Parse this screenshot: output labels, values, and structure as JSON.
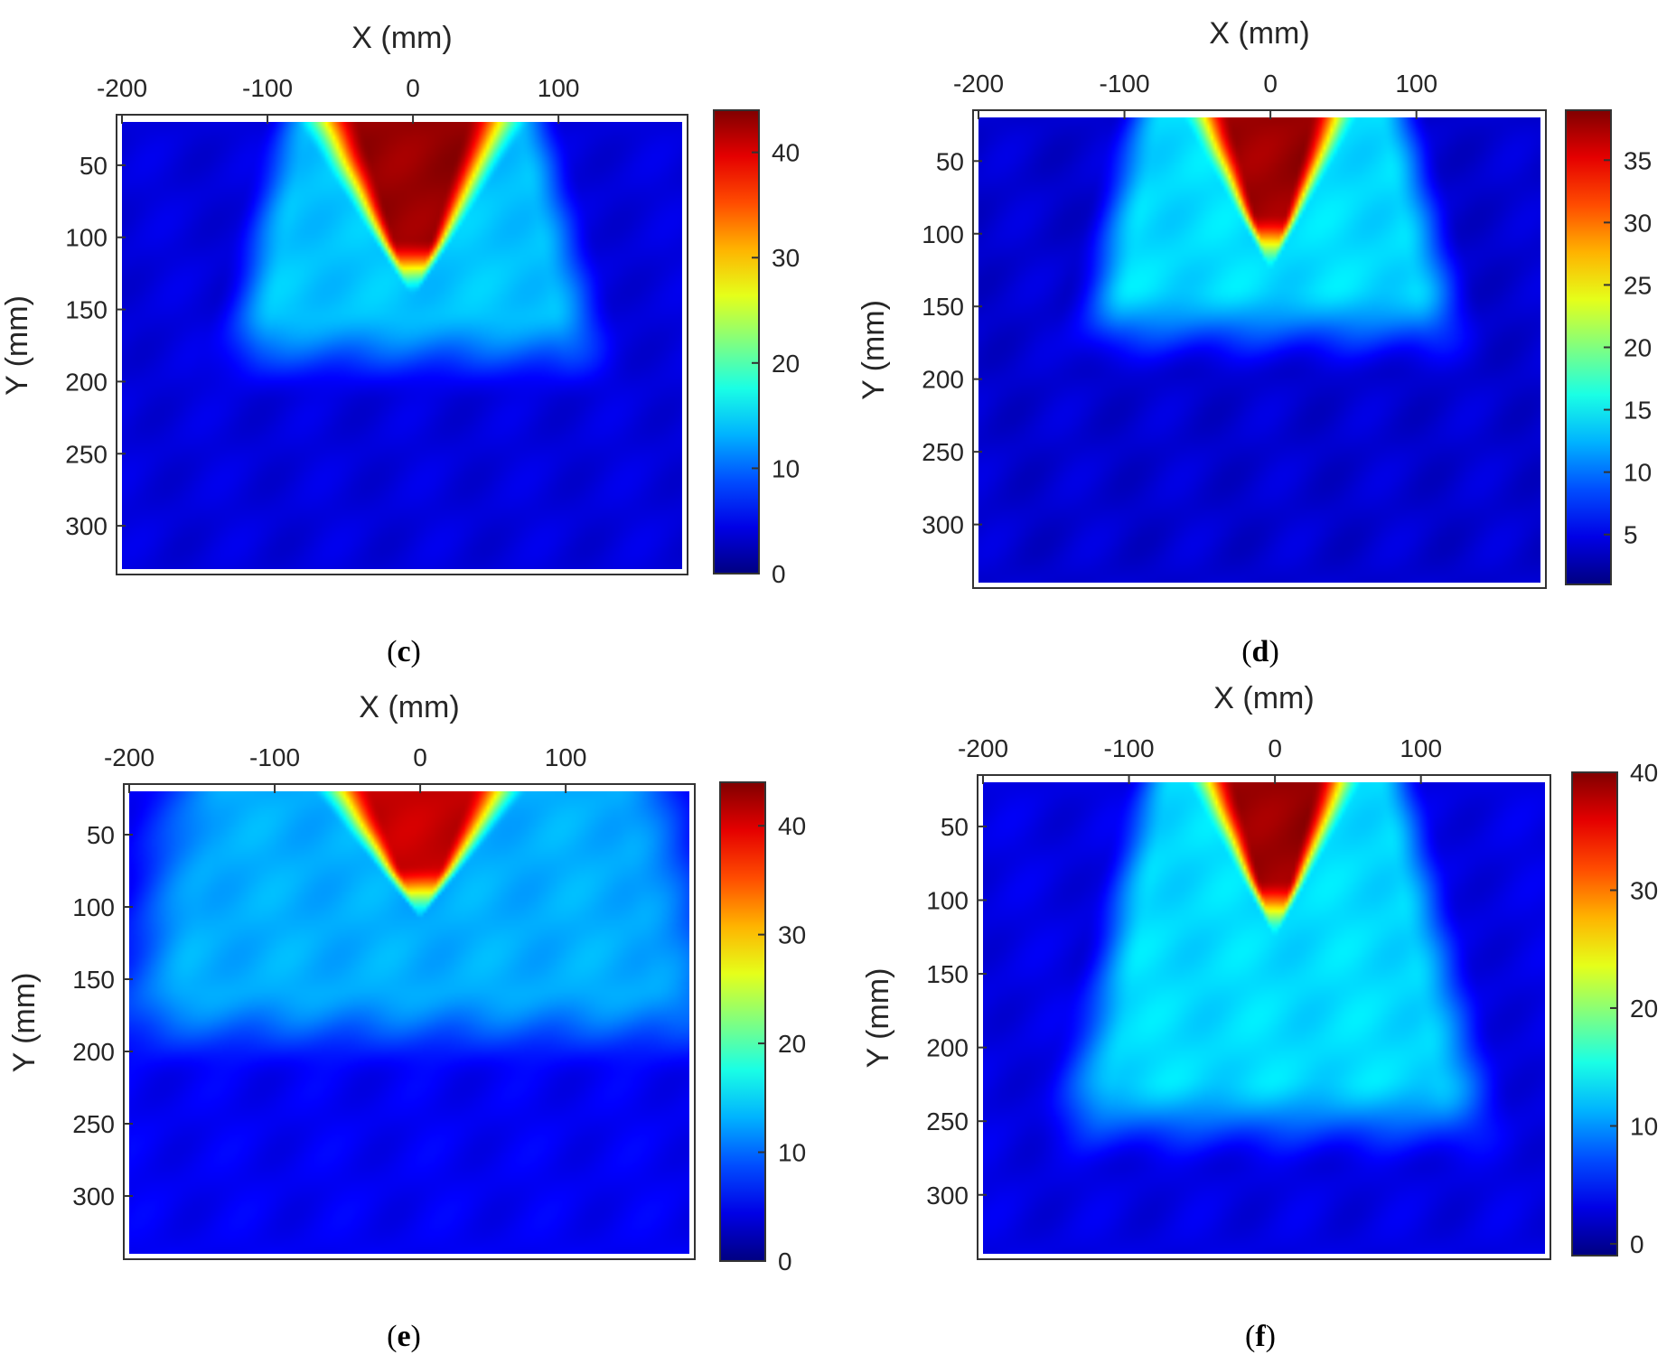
{
  "chart_data": [
    {
      "type": "heatmap",
      "panel": "c",
      "caption_open": "(",
      "caption_letter": "c",
      "caption_close": ")",
      "xlabel": "X (mm)",
      "ylabel": "Y (mm)",
      "x_ticks": [
        -200,
        -100,
        0,
        100
      ],
      "y_ticks": [
        50,
        100,
        150,
        200,
        250,
        300
      ],
      "xlim": [
        -200,
        185
      ],
      "ylim": [
        20,
        330
      ],
      "colorbar": {
        "min": 0,
        "max": 44,
        "ticks": [
          0,
          10,
          20,
          30,
          40
        ],
        "colormap": "jet"
      },
      "hot_core": {
        "x_center": 0,
        "half_width": 60,
        "top": 20,
        "tip": 125,
        "peak": 43
      },
      "plume": {
        "half_width": 95,
        "depth": 180,
        "level": 14
      },
      "background_level": 4,
      "axis_position": "top"
    },
    {
      "type": "heatmap",
      "panel": "d",
      "caption_open": "(",
      "caption_letter": "d",
      "caption_close": ")",
      "xlabel": "X (mm)",
      "ylabel": "Y (mm)",
      "x_ticks": [
        -200,
        -100,
        0,
        100
      ],
      "y_ticks": [
        50,
        100,
        150,
        200,
        250,
        300
      ],
      "xlim": [
        -200,
        185
      ],
      "ylim": [
        20,
        340
      ],
      "colorbar": {
        "min": 1,
        "max": 39,
        "ticks": [
          5,
          10,
          15,
          20,
          25,
          30,
          35
        ],
        "colormap": "jet"
      },
      "hot_core": {
        "x_center": 0,
        "half_width": 45,
        "top": 20,
        "tip": 110,
        "peak": 38
      },
      "plume": {
        "half_width": 100,
        "depth": 165,
        "level": 14
      },
      "background_level": 4,
      "axis_position": "top"
    },
    {
      "type": "heatmap",
      "panel": "e",
      "caption_open": "(",
      "caption_letter": "e",
      "caption_close": ")",
      "xlabel": "X (mm)",
      "ylabel": "Y (mm)",
      "x_ticks": [
        -200,
        -100,
        0,
        100
      ],
      "y_ticks": [
        50,
        100,
        150,
        200,
        250,
        300
      ],
      "xlim": [
        -200,
        185
      ],
      "ylim": [
        20,
        340
      ],
      "colorbar": {
        "min": 0,
        "max": 44,
        "ticks": [
          0,
          10,
          20,
          30,
          40
        ],
        "colormap": "jet"
      },
      "hot_core": {
        "x_center": 0,
        "half_width": 55,
        "top": 20,
        "tip": 95,
        "peak": 41
      },
      "plume": {
        "half_width": 180,
        "depth": 185,
        "level": 13
      },
      "background_level": 5,
      "axis_position": "top"
    },
    {
      "type": "heatmap",
      "panel": "f",
      "caption_open": "(",
      "caption_letter": "f",
      "caption_close": ")",
      "xlabel": "X (mm)",
      "ylabel": "Y (mm)",
      "x_ticks": [
        -200,
        -100,
        0,
        100
      ],
      "y_ticks": [
        50,
        100,
        150,
        200,
        250,
        300
      ],
      "xlim": [
        -200,
        185
      ],
      "ylim": [
        20,
        340
      ],
      "colorbar": {
        "min": -1,
        "max": 40,
        "ticks": [
          0,
          10,
          20,
          30,
          40
        ],
        "colormap": "jet"
      },
      "hot_core": {
        "x_center": 0,
        "half_width": 45,
        "top": 20,
        "tip": 110,
        "peak": 39
      },
      "plume": {
        "half_width": 95,
        "depth": 250,
        "level": 13
      },
      "background_level": 3,
      "axis_position": "top"
    }
  ]
}
